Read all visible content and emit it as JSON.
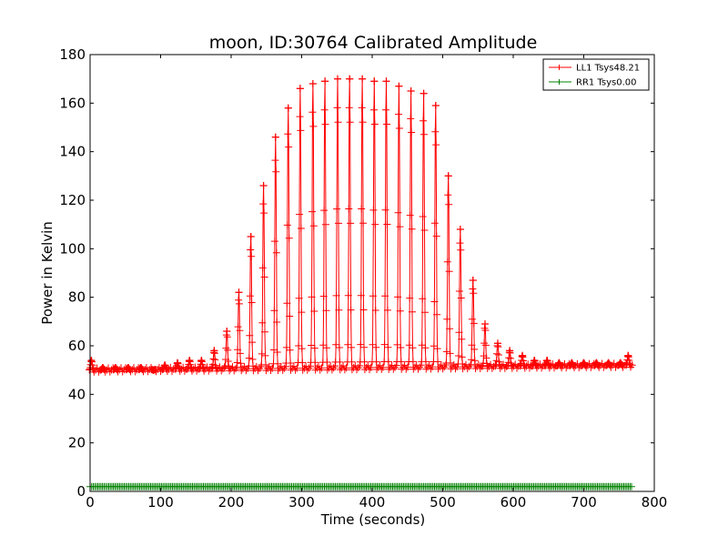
{
  "chart_data": {
    "type": "line",
    "title": "moon, ID:30764 Calibrated Amplitude",
    "xlabel": "Time (seconds)",
    "ylabel": "Power in Kelvin",
    "xlim": [
      0,
      800
    ],
    "ylim": [
      0,
      180
    ],
    "xticks": [
      0,
      100,
      200,
      300,
      400,
      500,
      600,
      700,
      800
    ],
    "yticks": [
      0,
      20,
      40,
      60,
      80,
      100,
      120,
      140,
      160,
      180
    ],
    "grid": false,
    "legend_position": "top-right",
    "marker": "+",
    "series": [
      {
        "name": "LL1 Tsys48.21",
        "color": "#ff0000",
        "baseline": 50,
        "baseline_end": 52,
        "t_start": 0,
        "t_end": 770,
        "peaks": [
          {
            "t": 2,
            "v": 54
          },
          {
            "t": 18,
            "v": 51
          },
          {
            "t": 36,
            "v": 51
          },
          {
            "t": 54,
            "v": 51
          },
          {
            "t": 72,
            "v": 51
          },
          {
            "t": 90,
            "v": 50
          },
          {
            "t": 106,
            "v": 52
          },
          {
            "t": 124,
            "v": 53
          },
          {
            "t": 141,
            "v": 54
          },
          {
            "t": 158,
            "v": 54
          },
          {
            "t": 176,
            "v": 58
          },
          {
            "t": 194,
            "v": 66
          },
          {
            "t": 211,
            "v": 82
          },
          {
            "t": 228,
            "v": 105
          },
          {
            "t": 246,
            "v": 126
          },
          {
            "t": 263,
            "v": 146
          },
          {
            "t": 281,
            "v": 158
          },
          {
            "t": 298,
            "v": 166
          },
          {
            "t": 316,
            "v": 168
          },
          {
            "t": 333,
            "v": 169
          },
          {
            "t": 351,
            "v": 170
          },
          {
            "t": 368,
            "v": 170
          },
          {
            "t": 386,
            "v": 170
          },
          {
            "t": 403,
            "v": 169
          },
          {
            "t": 420,
            "v": 169
          },
          {
            "t": 438,
            "v": 167
          },
          {
            "t": 455,
            "v": 165
          },
          {
            "t": 473,
            "v": 164
          },
          {
            "t": 490,
            "v": 159
          },
          {
            "t": 508,
            "v": 130
          },
          {
            "t": 525,
            "v": 108
          },
          {
            "t": 543,
            "v": 87
          },
          {
            "t": 560,
            "v": 69
          },
          {
            "t": 578,
            "v": 61
          },
          {
            "t": 595,
            "v": 58
          },
          {
            "t": 613,
            "v": 56
          },
          {
            "t": 630,
            "v": 54
          },
          {
            "t": 648,
            "v": 54
          },
          {
            "t": 665,
            "v": 53
          },
          {
            "t": 683,
            "v": 53
          },
          {
            "t": 700,
            "v": 53
          },
          {
            "t": 718,
            "v": 53
          },
          {
            "t": 735,
            "v": 53
          },
          {
            "t": 752,
            "v": 53
          },
          {
            "t": 763,
            "v": 56
          }
        ]
      },
      {
        "name": "RR1 Tsys0.00",
        "color": "#008000",
        "baseline": 2,
        "t_start": 0,
        "t_end": 770
      }
    ]
  }
}
